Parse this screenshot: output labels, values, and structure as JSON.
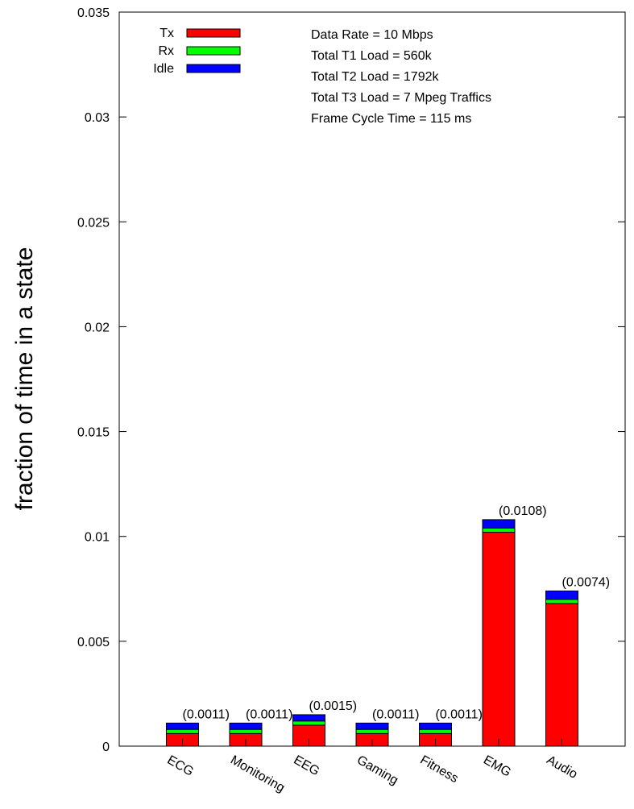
{
  "chart_data": {
    "type": "stacked-bar",
    "y_label": "fraction of time in a state",
    "categories": [
      "ECG",
      "Monitoring",
      "EEG",
      "Gaming",
      "Fitness",
      "EMG",
      "Audio"
    ],
    "series": [
      {
        "name": "Tx",
        "color": "#ff0000",
        "values": [
          0.0006,
          0.0006,
          0.001,
          0.0006,
          0.0006,
          0.0102,
          0.0068
        ]
      },
      {
        "name": "Rx",
        "color": "#00ff00",
        "values": [
          0.0002,
          0.0002,
          0.0002,
          0.0002,
          0.0002,
          0.0002,
          0.0002
        ]
      },
      {
        "name": "Idle",
        "color": "#0000ff",
        "values": [
          0.0003,
          0.0003,
          0.0003,
          0.0003,
          0.0003,
          0.0004,
          0.0004
        ]
      }
    ],
    "totals": {
      "values": [
        0.0011,
        0.0011,
        0.0015,
        0.0011,
        0.0011,
        0.0108,
        0.0074
      ],
      "value_labels": [
        "(0.0011)",
        "(0.0011)",
        "(0.0015)",
        "(0.0011)",
        "(0.0011)",
        "(0.0108)",
        "(0.0074)"
      ]
    },
    "annotations": [
      "Data Rate = 10 Mbps",
      "Total T1 Load = 560k",
      "Total T2 Load = 1792k",
      "Total T3 Load = 7 Mpeg Traffics",
      "Frame Cycle Time = 115 ms"
    ],
    "ylim": [
      0,
      0.035
    ],
    "yticks": [
      0,
      0.005,
      0.01,
      0.015,
      0.02,
      0.025,
      0.03,
      0.035
    ],
    "legend_position": "top-left",
    "grid": false
  }
}
